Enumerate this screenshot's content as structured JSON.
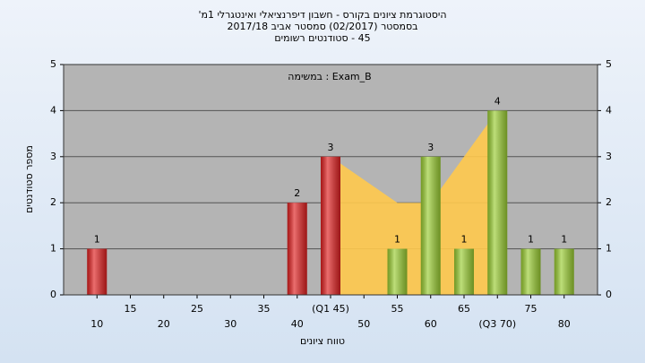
{
  "chart_data": {
    "type": "bar",
    "title": "היסטוגרמת ציונים בקורס - חשבון דיפרנציאלי ואינטגרלי 1מ'",
    "subtitle": "בסמסטר (02/2017) סמסטר אביב 2017/18",
    "subtitle2": "45 - סטודנטים רשומים",
    "annotation": "Exam_B : במשימה",
    "x_label": "טווח ציונים",
    "y_label": "מספר סטודנטים",
    "x": [
      10,
      15,
      20,
      25,
      30,
      35,
      40,
      45,
      50,
      55,
      60,
      65,
      70,
      75,
      80
    ],
    "values": [
      1,
      0,
      0,
      0,
      0,
      0,
      2,
      3,
      0,
      1,
      3,
      1,
      4,
      1,
      1
    ],
    "colors": [
      "#e02020",
      "#e02020",
      "#e02020",
      "#e02020",
      "#e02020",
      "#e02020",
      "#e02020",
      "#e02020",
      "#9acd32",
      "#9acd32",
      "#9acd32",
      "#9acd32",
      "#9acd32",
      "#9acd32",
      "#9acd32"
    ],
    "quartile_area": {
      "x": [
        45,
        55,
        60,
        65,
        70
      ],
      "values": [
        3,
        2,
        2,
        3,
        4
      ],
      "color": "#ffc94d"
    },
    "xlim": [
      5,
      85
    ],
    "xticks": [
      10,
      15,
      20,
      25,
      30,
      35,
      40,
      {
        "value": 45,
        "label": "(Q1 45)"
      },
      50,
      55,
      60,
      65,
      {
        "value": 70,
        "label": "(Q3 70)"
      },
      75,
      80
    ],
    "ylim": [
      0,
      5
    ],
    "yticks": [
      0,
      1,
      2,
      3,
      4,
      5
    ],
    "grid": true
  }
}
